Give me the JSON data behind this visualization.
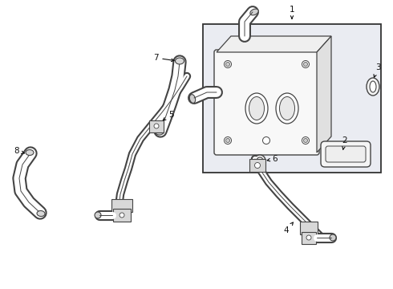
{
  "bg_color": "#ffffff",
  "line_color": "#444444",
  "box_bg": "#e8eaf0",
  "fig_width": 4.9,
  "fig_height": 3.6,
  "dpi": 100,
  "label_fontsize": 7.5,
  "text_color": "#111111",
  "arrow_color": "#111111"
}
